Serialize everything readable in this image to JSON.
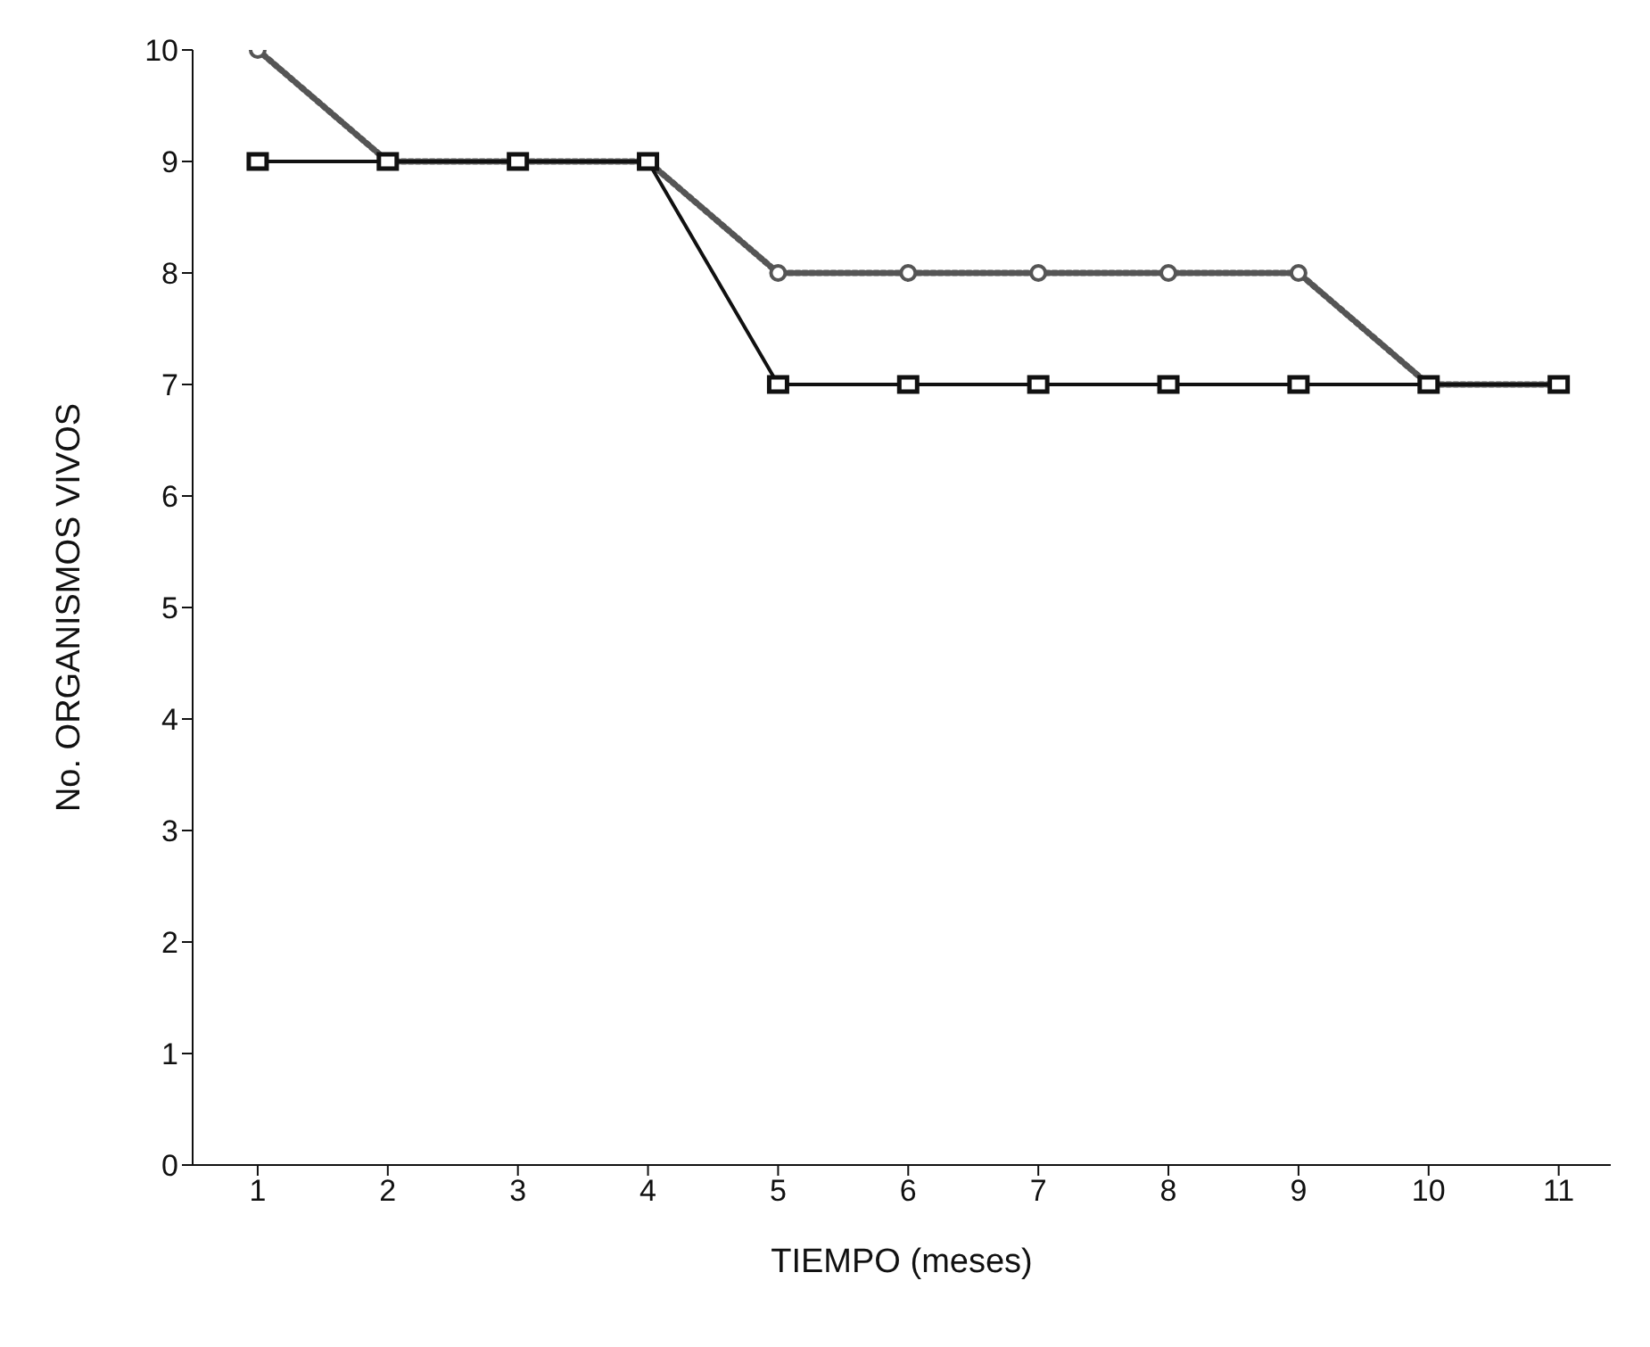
{
  "chart_data": {
    "type": "line",
    "xlabel": "TIEMPO (meses)",
    "ylabel": "No. ORGANISMOS VIVOS",
    "x": [
      1,
      2,
      3,
      4,
      5,
      6,
      7,
      8,
      9,
      10,
      11
    ],
    "series": [
      {
        "color": "#555555",
        "line_style": "dotted",
        "marker": "circle",
        "values": [
          10,
          9,
          9,
          9,
          8,
          8,
          8,
          8,
          8,
          7,
          7
        ]
      },
      {
        "color": "#111111",
        "line_style": "solid",
        "marker": "square",
        "values": [
          9,
          9,
          9,
          9,
          7,
          7,
          7,
          7,
          7,
          7,
          7
        ]
      }
    ],
    "xlim": [
      0.5,
      11.4
    ],
    "xticks": [
      1,
      2,
      3,
      4,
      5,
      6,
      7,
      8,
      9,
      10,
      11
    ],
    "ylim": [
      0,
      10
    ],
    "yticks": [
      0,
      1,
      2,
      3,
      4,
      5,
      6,
      7,
      8,
      9,
      10
    ],
    "grid": false,
    "legend": false
  }
}
